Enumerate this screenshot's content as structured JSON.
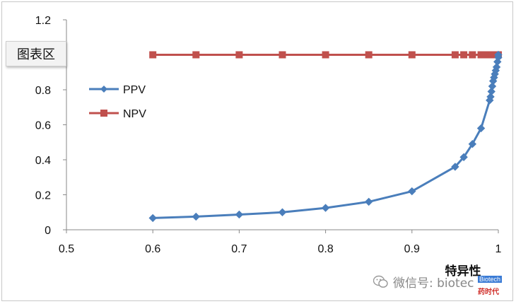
{
  "chart_data": {
    "type": "line",
    "title": "",
    "xlabel": "特异性",
    "ylabel": "",
    "xlim": [
      0.5,
      1
    ],
    "ylim": [
      0,
      1.2
    ],
    "x_ticks": [
      "0.5",
      "0.6",
      "0.7",
      "0.8",
      "0.9",
      "1"
    ],
    "y_ticks": [
      "0",
      "0.2",
      "0.4",
      "0.6",
      "0.8",
      "1",
      "1.2"
    ],
    "grid": false,
    "legend_position": "left",
    "series": [
      {
        "name": "PPV",
        "color": "#4a7ebb",
        "marker": "diamond",
        "points": [
          [
            0.6,
            0.067
          ],
          [
            0.65,
            0.075
          ],
          [
            0.7,
            0.087
          ],
          [
            0.75,
            0.1
          ],
          [
            0.8,
            0.125
          ],
          [
            0.85,
            0.16
          ],
          [
            0.9,
            0.22
          ],
          [
            0.95,
            0.36
          ],
          [
            0.96,
            0.415
          ],
          [
            0.97,
            0.49
          ],
          [
            0.98,
            0.58
          ],
          [
            0.99,
            0.74
          ],
          [
            0.991,
            0.76
          ],
          [
            0.992,
            0.79
          ],
          [
            0.993,
            0.82
          ],
          [
            0.994,
            0.85
          ],
          [
            0.995,
            0.87
          ],
          [
            0.996,
            0.89
          ],
          [
            0.997,
            0.91
          ],
          [
            0.998,
            0.93
          ],
          [
            0.999,
            0.96
          ],
          [
            1.0,
            0.985
          ],
          [
            1.0,
            1.0
          ]
        ]
      },
      {
        "name": "NPV",
        "color": "#c0504d",
        "marker": "square",
        "points": [
          [
            0.6,
            1.0
          ],
          [
            0.65,
            1.0
          ],
          [
            0.7,
            1.0
          ],
          [
            0.75,
            1.0
          ],
          [
            0.8,
            1.0
          ],
          [
            0.85,
            1.0
          ],
          [
            0.9,
            1.0
          ],
          [
            0.95,
            1.0
          ],
          [
            0.96,
            1.0
          ],
          [
            0.97,
            1.0
          ],
          [
            0.98,
            1.0
          ],
          [
            0.985,
            1.0
          ],
          [
            0.99,
            1.0
          ],
          [
            0.993,
            1.0
          ],
          [
            0.996,
            1.0
          ],
          [
            0.998,
            1.0
          ],
          [
            1.0,
            1.0
          ]
        ]
      }
    ]
  },
  "tooltip": {
    "label": "图表区"
  },
  "watermark": {
    "text": "微信号: biotec",
    "badge_top": "Biotech",
    "badge_bottom": "药时代",
    "icon": "wechat-icon"
  }
}
